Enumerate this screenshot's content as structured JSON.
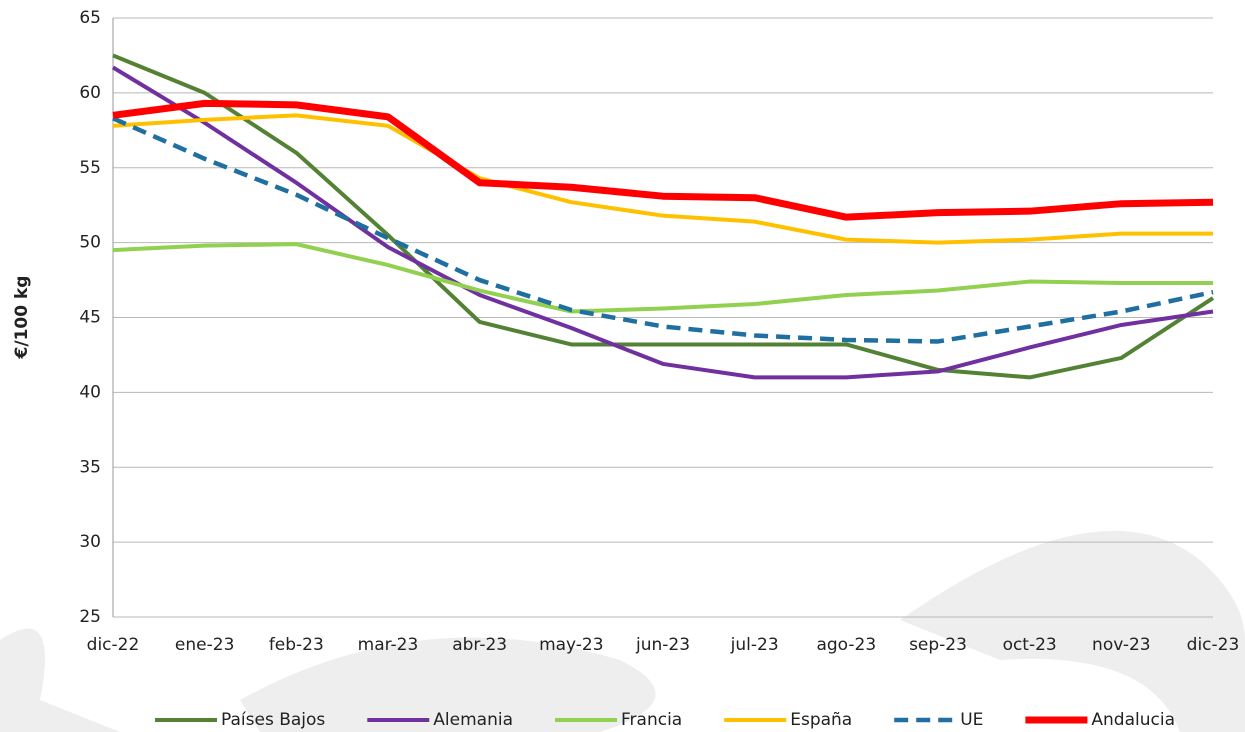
{
  "chart_data": {
    "type": "line",
    "y_label": "€/100 kg",
    "categories": [
      "dic-22",
      "ene-23",
      "feb-23",
      "mar-23",
      "abr-23",
      "may-23",
      "jun-23",
      "jul-23",
      "ago-23",
      "sep-23",
      "oct-23",
      "nov-23",
      "dic-23"
    ],
    "ylim": [
      25,
      65
    ],
    "yticks": [
      25,
      30,
      35,
      40,
      45,
      50,
      55,
      60,
      65
    ],
    "grid": true,
    "legend": "bottom",
    "series": [
      {
        "name": "Países Bajos",
        "color": "#548235",
        "values": [
          62.5,
          60,
          56,
          50.5,
          44.7,
          43.2,
          43.2,
          43.2,
          43.2,
          41.5,
          41,
          42.3,
          46.3
        ]
      },
      {
        "name": "Alemania",
        "color": "#7030a0",
        "values": [
          61.7,
          58,
          54,
          49.7,
          46.5,
          44.3,
          41.9,
          41,
          41,
          41.4,
          43,
          44.5,
          45.4
        ]
      },
      {
        "name": "Francia",
        "color": "#92d050",
        "values": [
          49.5,
          49.8,
          49.9,
          48.5,
          46.8,
          45.4,
          45.6,
          45.9,
          46.5,
          46.8,
          47.4,
          47.3,
          47.3
        ]
      },
      {
        "name": "España",
        "color": "#ffc000",
        "values": [
          57.8,
          58.2,
          58.5,
          57.8,
          54.3,
          52.7,
          51.8,
          51.4,
          50.2,
          50,
          50.2,
          50.6,
          50.6
        ]
      },
      {
        "name": "UE",
        "color": "#1f6fa0",
        "line_style": "dashed",
        "values": [
          58.3,
          55.6,
          53.2,
          50.3,
          47.5,
          45.5,
          44.4,
          43.8,
          43.5,
          43.4,
          44.4,
          45.4,
          46.7
        ]
      },
      {
        "name": "Andalucia",
        "color": "#ff0000",
        "values": [
          58.5,
          59.3,
          59.2,
          58.4,
          54,
          53.7,
          53.1,
          53,
          51.7,
          52,
          52.1,
          52.6,
          52.7
        ]
      }
    ]
  }
}
